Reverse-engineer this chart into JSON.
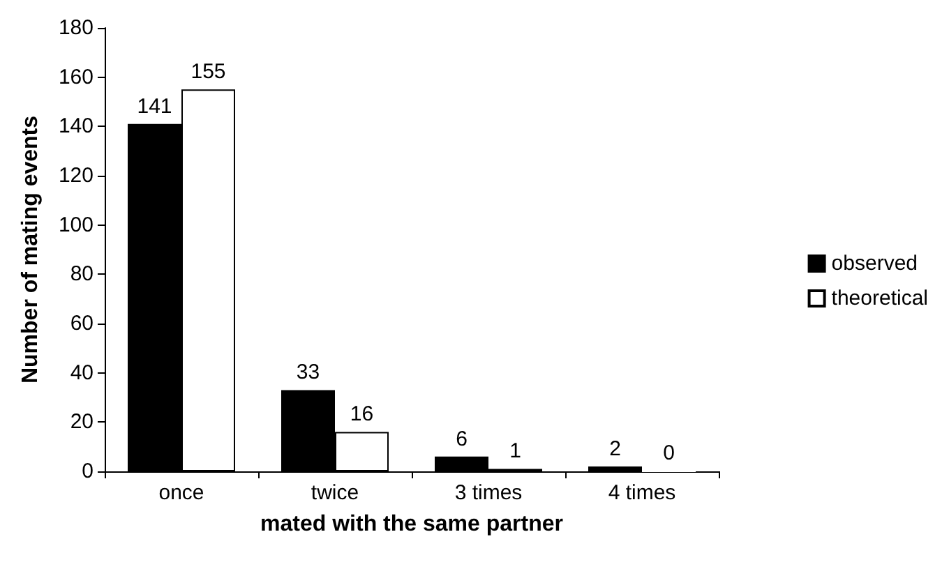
{
  "chart_data": {
    "type": "bar",
    "xlabel": "mated with the same partner",
    "ylabel": "Number of mating events",
    "categories": [
      "once",
      "twice",
      "3 times",
      "4 times"
    ],
    "series": [
      {
        "name": "observed",
        "color": "#000000",
        "values": [
          141,
          33,
          6,
          2
        ]
      },
      {
        "name": "theoretical",
        "color": "#ffffff",
        "values": [
          155,
          16,
          1,
          0
        ]
      }
    ],
    "ylim": [
      0,
      180
    ],
    "yticks": [
      0,
      20,
      40,
      60,
      80,
      100,
      120,
      140,
      160,
      180
    ],
    "grid": false,
    "legend": "right",
    "data_labels": true
  }
}
